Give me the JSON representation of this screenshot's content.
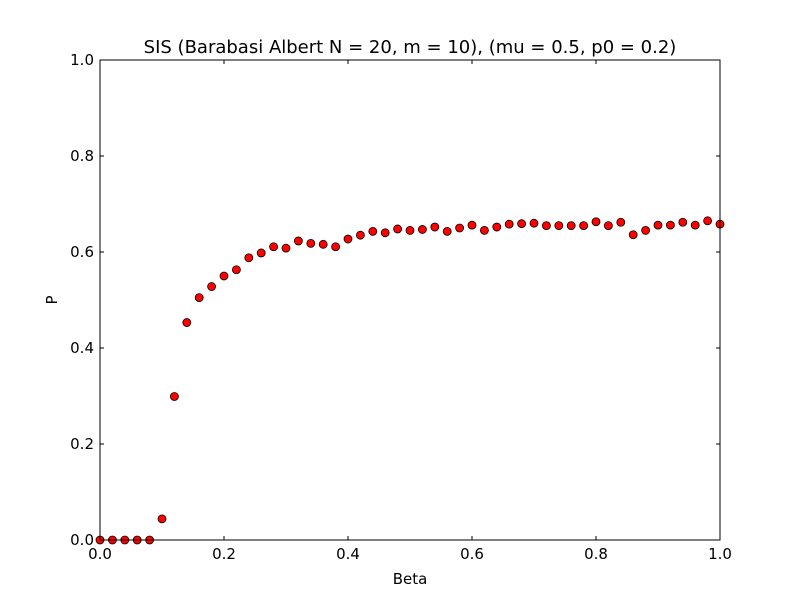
{
  "chart_data": {
    "type": "scatter",
    "title": "SIS (Barabasi Albert N = 20, m = 10), (mu = 0.5, p0 = 0.2)",
    "xlabel": "Beta",
    "ylabel": "P",
    "xlim": [
      0.0,
      1.0
    ],
    "ylim": [
      0.0,
      1.0
    ],
    "xticks": [
      0.0,
      0.2,
      0.4,
      0.6,
      0.8,
      1.0
    ],
    "yticks": [
      0.0,
      0.2,
      0.4,
      0.6,
      0.8,
      1.0
    ],
    "xtick_labels": [
      "0.0",
      "0.2",
      "0.4",
      "0.6",
      "0.8",
      "1.0"
    ],
    "ytick_labels": [
      "0.0",
      "0.2",
      "0.4",
      "0.6",
      "0.8",
      "1.0"
    ],
    "grid": false,
    "marker_color": "#ff0000",
    "marker_edge_color": "#000000",
    "x": [
      0.0,
      0.02,
      0.04,
      0.06,
      0.08,
      0.1,
      0.12,
      0.14,
      0.16,
      0.18,
      0.2,
      0.22,
      0.24,
      0.26,
      0.28,
      0.3,
      0.32,
      0.34,
      0.36,
      0.38,
      0.4,
      0.42,
      0.44,
      0.46,
      0.48,
      0.5,
      0.52,
      0.54,
      0.56,
      0.58,
      0.6,
      0.62,
      0.64,
      0.66,
      0.68,
      0.7,
      0.72,
      0.74,
      0.76,
      0.78,
      0.8,
      0.82,
      0.84,
      0.86,
      0.88,
      0.9,
      0.92,
      0.94,
      0.96,
      0.98,
      1.0
    ],
    "y": [
      0.0,
      0.0,
      0.0,
      0.0,
      0.0,
      0.044,
      0.299,
      0.453,
      0.505,
      0.528,
      0.55,
      0.563,
      0.588,
      0.598,
      0.611,
      0.608,
      0.623,
      0.618,
      0.616,
      0.611,
      0.627,
      0.635,
      0.643,
      0.64,
      0.648,
      0.645,
      0.647,
      0.652,
      0.643,
      0.65,
      0.656,
      0.645,
      0.652,
      0.658,
      0.659,
      0.66,
      0.655,
      0.655,
      0.655,
      0.655,
      0.663,
      0.655,
      0.662,
      0.636,
      0.645,
      0.656,
      0.656,
      0.662,
      0.656,
      0.665,
      0.658
    ]
  }
}
